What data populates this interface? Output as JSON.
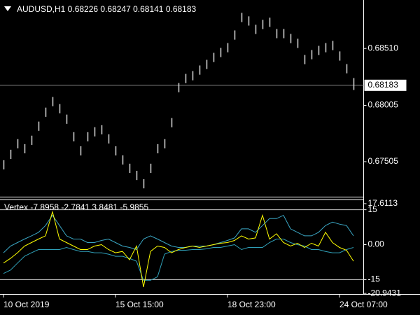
{
  "chart_data": [
    {
      "type": "hilo",
      "title": "AUDUSD,H1  0.68226 0.68247 0.68141 0.68183",
      "color": "#d8d8d8",
      "categories": [
        "10 Oct 2019",
        null,
        null,
        null,
        null,
        null,
        null,
        null,
        null,
        null,
        null,
        null,
        null,
        null,
        null,
        null,
        "15 Oct 15:00",
        null,
        null,
        null,
        null,
        null,
        null,
        null,
        null,
        null,
        null,
        null,
        null,
        null,
        null,
        null,
        "18 Oct 23:00",
        null,
        null,
        null,
        null,
        null,
        null,
        null,
        null,
        null,
        null,
        null,
        null,
        null,
        null,
        null,
        "24 Oct 07:00",
        null,
        null
      ],
      "high": [
        0.67518,
        0.67611,
        0.67705,
        0.67661,
        0.67736,
        0.67861,
        0.67985,
        0.68079,
        0.68016,
        0.67923,
        0.67767,
        0.67642,
        0.67767,
        0.67811,
        0.67829,
        0.67748,
        0.67642,
        0.67561,
        0.67487,
        0.67424,
        0.6735,
        0.67487,
        0.67661,
        0.67705,
        0.67892,
        0.68203,
        0.68284,
        0.68309,
        0.68359,
        0.68409,
        0.68471,
        0.68515,
        0.68558,
        0.6867,
        0.68826,
        0.68795,
        0.6872,
        0.68764,
        0.68783,
        0.68683,
        0.68683,
        0.68639,
        0.68596,
        0.68452,
        0.68496,
        0.68533,
        0.68558,
        0.68577,
        0.68484,
        0.68371,
        0.68247
      ],
      "low": [
        0.67436,
        0.67529,
        0.67623,
        0.67579,
        0.67654,
        0.67779,
        0.67903,
        0.67997,
        0.67934,
        0.67841,
        0.67685,
        0.6756,
        0.67685,
        0.67729,
        0.67747,
        0.67666,
        0.6756,
        0.67479,
        0.67405,
        0.67342,
        0.67268,
        0.67405,
        0.67579,
        0.67623,
        0.6781,
        0.68121,
        0.68202,
        0.68227,
        0.68277,
        0.68327,
        0.68389,
        0.68433,
        0.68476,
        0.68588,
        0.68744,
        0.68713,
        0.68638,
        0.68682,
        0.68701,
        0.68601,
        0.68601,
        0.68557,
        0.68514,
        0.6837,
        0.68414,
        0.68451,
        0.68476,
        0.68495,
        0.68402,
        0.68289,
        0.68141
      ],
      "last": 0.68183,
      "ylim": [
        0.67194,
        0.6894
      ],
      "yticks": [
        {
          "value": 0.6851,
          "label": "0.68510"
        },
        0.68005,
        0.67505
      ]
    },
    {
      "type": "line",
      "title": "Vertex -7.8958 -2.7841 3.8481 -5.9855",
      "series": [
        {
          "color": "#3aa6c4",
          "values": [
            -3.5,
            -0.6,
            0.9,
            2.4,
            3.8,
            5.3,
            8.2,
            12.6,
            8.2,
            3.8,
            2.4,
            2.4,
            0.9,
            0.9,
            1.8,
            2.4,
            0.9,
            -0.6,
            -1.2,
            -2.1,
            2.4,
            3.8,
            2.4,
            0.9,
            -0.6,
            -1.2,
            -1.2,
            -0.6,
            -0.6,
            -0.6,
            0,
            0.9,
            1.8,
            2.9,
            6.8,
            6.8,
            5.3,
            8.2,
            11.2,
            11.2,
            12.6,
            6.8,
            5.3,
            3.8,
            3.8,
            5.3,
            8.2,
            9.7,
            8.8,
            8.2,
            3.8
          ]
        },
        {
          "color": "#2fa0b8",
          "values": [
            -12.4,
            -10.9,
            -7.9,
            -5,
            -3.5,
            -2.1,
            -2.1,
            -2.1,
            -2.1,
            -1.2,
            -2.1,
            -2.9,
            -2.9,
            -3.5,
            -3.5,
            -4.1,
            -5,
            -5,
            -5.9,
            -7.1,
            -15.3,
            -15.3,
            -13.8,
            -4.1,
            -2.9,
            -2.4,
            -2.4,
            -2.1,
            -2.1,
            -1.8,
            -1.2,
            -1.2,
            -0.6,
            0,
            -2.1,
            -1.2,
            -1.2,
            -1.2,
            0.9,
            2.4,
            2.4,
            0.9,
            0,
            -0.6,
            -2.1,
            -2.1,
            -2.9,
            -3.5,
            -3.5,
            -2.1,
            -1.2
          ]
        },
        {
          "color": "#ffff00",
          "values": [
            -7.9,
            -5.9,
            -3.5,
            -0.6,
            0.9,
            2.4,
            3.8,
            14.1,
            2.4,
            0.9,
            -0.6,
            -2.1,
            -2.1,
            -0.6,
            0,
            -2.1,
            -3.5,
            -2.9,
            -6.5,
            -0.6,
            -18.2,
            -2.9,
            -0.6,
            -1.2,
            -3.5,
            -2.1,
            -1.2,
            -0.6,
            -1.2,
            -0.6,
            0,
            0.6,
            0.9,
            1.8,
            3.8,
            2.4,
            2.9,
            12.6,
            2.4,
            4.7,
            0.9,
            -0.6,
            0.6,
            -1.2,
            0.6,
            -0.6,
            5.3,
            0.9,
            -1.2,
            -2.4,
            -7.1
          ]
        }
      ],
      "levels": [
        15,
        -15
      ],
      "ylim": [
        -21.2,
        19.1
      ],
      "yticks": [
        17.6113,
        15,
        {
          "value": 0,
          "label": "0.00"
        },
        -15,
        -20.9431
      ]
    }
  ]
}
